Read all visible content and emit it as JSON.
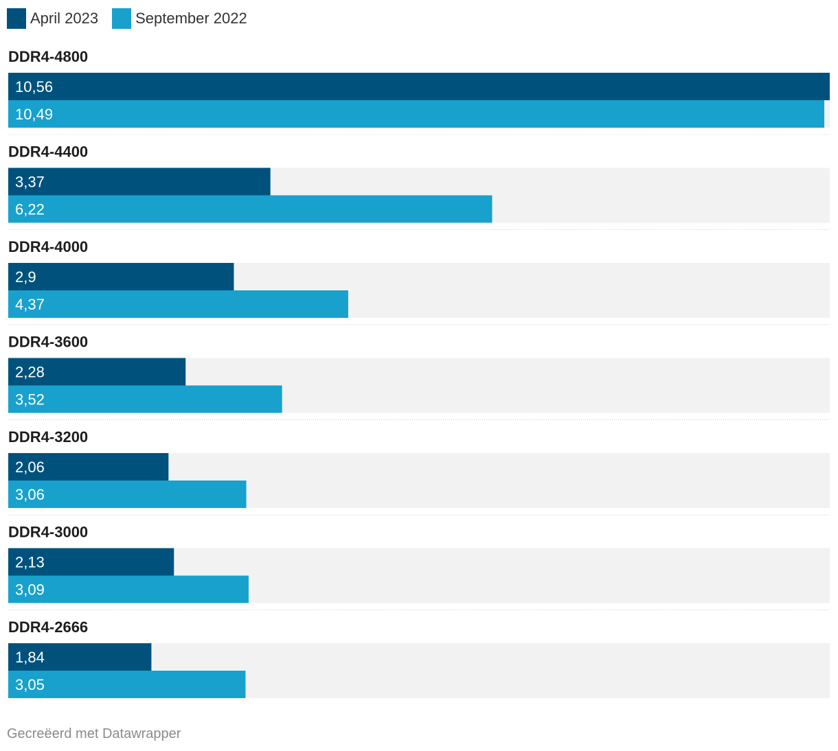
{
  "chart_data": {
    "type": "bar",
    "orientation": "horizontal",
    "categories": [
      "DDR4-4800",
      "DDR4-4400",
      "DDR4-4000",
      "DDR4-3600",
      "DDR4-3200",
      "DDR4-3000",
      "DDR4-2666"
    ],
    "series": [
      {
        "name": "April 2023",
        "color": "#00527c",
        "values": [
          10.56,
          3.37,
          2.9,
          2.28,
          2.06,
          2.13,
          1.84
        ],
        "labels": [
          "10,56",
          "3,37",
          "2,9",
          "2,28",
          "2,06",
          "2,13",
          "1,84"
        ]
      },
      {
        "name": "September 2022",
        "color": "#18a1cd",
        "values": [
          10.49,
          6.22,
          4.37,
          3.52,
          3.06,
          3.09,
          3.05
        ],
        "labels": [
          "10,49",
          "6,22",
          "4,37",
          "3,52",
          "3,06",
          "3,09",
          "3,05"
        ]
      }
    ],
    "xlim": [
      0,
      10.56
    ],
    "legend_position": "top-left",
    "background_bar_color": "#f2f2f2",
    "separator": "dotted"
  },
  "legend": {
    "april": "April 2023",
    "september": "September 2022"
  },
  "footer": {
    "credit": "Gecreëerd met Datawrapper"
  }
}
